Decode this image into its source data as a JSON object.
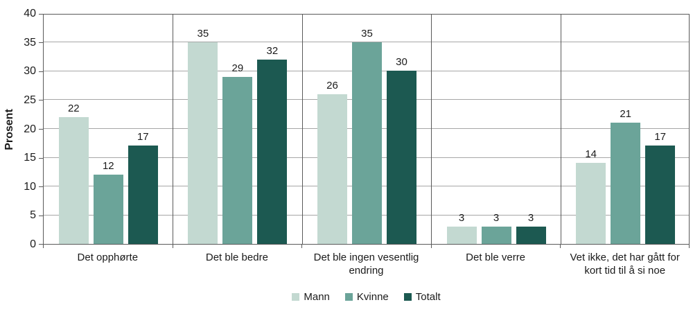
{
  "chart_data": {
    "type": "bar",
    "title": "",
    "xlabel": "",
    "ylabel": "Prosent",
    "ylim": [
      0,
      40
    ],
    "yticks": [
      0,
      5,
      10,
      15,
      20,
      25,
      30,
      35,
      40
    ],
    "grid": true,
    "legend_position": "bottom",
    "categories": [
      "Det opphørte",
      "Det ble bedre",
      "Det ble ingen vesentlig endring",
      "Det ble verre",
      "Vet ikke, det har gått for kort tid til å si noe"
    ],
    "series": [
      {
        "name": "Mann",
        "color": "#c3d9d1",
        "values": [
          22,
          35,
          26,
          3,
          14
        ]
      },
      {
        "name": "Kvinne",
        "color": "#6ba499",
        "values": [
          12,
          29,
          35,
          3,
          21
        ]
      },
      {
        "name": "Totalt",
        "color": "#1c5951",
        "values": [
          17,
          32,
          30,
          3,
          17
        ]
      }
    ]
  },
  "colors": {
    "grid": "#a6a6a6",
    "border": "#595959",
    "text": "#1a1a1a",
    "background": "#ffffff"
  }
}
